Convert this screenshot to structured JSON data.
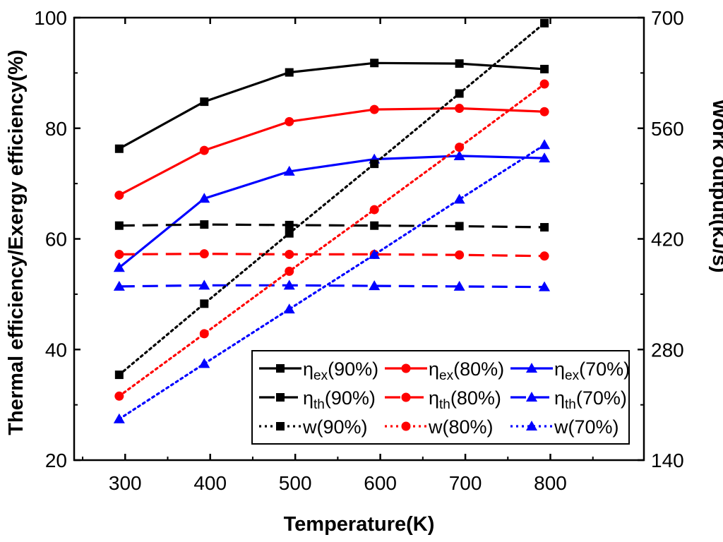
{
  "chart_data": {
    "type": "line",
    "xlabel": "Temperature(K)",
    "ylabel_left": "Thermal efficiency/Exergy efficiency(%)",
    "ylabel_right": "Work output(kJ/s)",
    "xlim": [
      240,
      910
    ],
    "ylim_left": [
      20,
      100
    ],
    "ylim_right": [
      140,
      700
    ],
    "x_ticks": [
      300,
      400,
      500,
      600,
      700,
      800
    ],
    "y_left_ticks": [
      20,
      40,
      60,
      80,
      100
    ],
    "y_right_ticks": [
      140,
      280,
      420,
      560,
      700
    ],
    "x": [
      293,
      393,
      493,
      593,
      693,
      793
    ],
    "series": [
      {
        "name": "η_ex(90%)",
        "legend_main": "η",
        "legend_sub": "ex",
        "legend_suffix": "(90%)",
        "axis": "left",
        "color": "#000000",
        "style": "solid",
        "marker": "square",
        "values": [
          76.3,
          84.8,
          90.1,
          91.8,
          91.7,
          90.7
        ]
      },
      {
        "name": "η_ex(80%)",
        "legend_main": "η",
        "legend_sub": "ex",
        "legend_suffix": "(80%)",
        "axis": "left",
        "color": "#ff0000",
        "style": "solid",
        "marker": "circle",
        "values": [
          67.9,
          76.0,
          81.2,
          83.4,
          83.6,
          83.0
        ]
      },
      {
        "name": "η_ex(70%)",
        "legend_main": "η",
        "legend_sub": "ex",
        "legend_suffix": "(70%)",
        "axis": "left",
        "color": "#0000ff",
        "style": "solid",
        "marker": "triangle",
        "values": [
          54.8,
          67.3,
          72.2,
          74.4,
          75.0,
          74.6
        ]
      },
      {
        "name": "η_th(90%)",
        "legend_main": "η",
        "legend_sub": "th",
        "legend_suffix": "(90%)",
        "axis": "left",
        "color": "#000000",
        "style": "dashed",
        "marker": "square",
        "values": [
          62.4,
          62.6,
          62.5,
          62.4,
          62.3,
          62.1
        ]
      },
      {
        "name": "η_th(80%)",
        "legend_main": "η",
        "legend_sub": "th",
        "legend_suffix": "(80%)",
        "axis": "left",
        "color": "#ff0000",
        "style": "dashed",
        "marker": "circle",
        "values": [
          57.2,
          57.3,
          57.2,
          57.2,
          57.1,
          56.9
        ]
      },
      {
        "name": "η_th(70%)",
        "legend_main": "η",
        "legend_sub": "th",
        "legend_suffix": "(70%)",
        "axis": "left",
        "color": "#0000ff",
        "style": "dashed",
        "marker": "triangle",
        "values": [
          51.4,
          51.6,
          51.6,
          51.5,
          51.4,
          51.3
        ]
      },
      {
        "name": "w(90%)",
        "legend_main": "w(90%)",
        "legend_sub": "",
        "legend_suffix": "",
        "axis": "right",
        "color": "#000000",
        "style": "dotted",
        "marker": "square",
        "values": [
          248,
          338,
          427,
          515,
          604,
          693
        ]
      },
      {
        "name": "w(80%)",
        "legend_main": "w(80%)",
        "legend_sub": "",
        "legend_suffix": "",
        "axis": "right",
        "color": "#ff0000",
        "style": "dotted",
        "marker": "circle",
        "values": [
          221,
          300,
          379,
          457,
          536,
          616
        ]
      },
      {
        "name": "w(70%)",
        "legend_main": "w(70%)",
        "legend_sub": "",
        "legend_suffix": "",
        "axis": "right",
        "color": "#0000ff",
        "style": "dotted",
        "marker": "triangle",
        "values": [
          192,
          262,
          331,
          400,
          470,
          539
        ]
      }
    ]
  }
}
